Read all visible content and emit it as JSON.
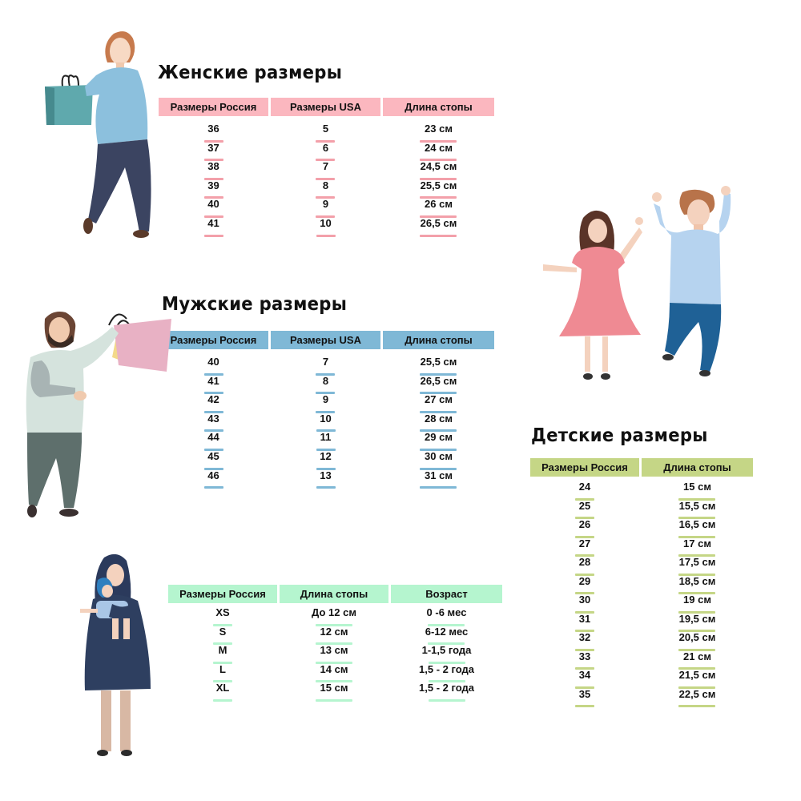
{
  "colors": {
    "women": "#fbb7bf",
    "men": "#7fb8d6",
    "kids": "#c5d686",
    "infant": "#b5f5cf"
  },
  "women": {
    "title": "Женские размеры",
    "headers": [
      "Размеры Россия",
      "Размеры USA",
      "Длина стопы"
    ],
    "rows": [
      [
        "36",
        "5",
        "23 см"
      ],
      [
        "37",
        "6",
        "24 см"
      ],
      [
        "38",
        "7",
        "24,5 см"
      ],
      [
        "39",
        "8",
        "25,5 см"
      ],
      [
        "40",
        "9",
        "26 см"
      ],
      [
        "41",
        "10",
        "26,5 см"
      ]
    ]
  },
  "men": {
    "title": "Мужские размеры",
    "headers": [
      "Размеры Россия",
      "Размеры USA",
      "Длина стопы"
    ],
    "rows": [
      [
        "40",
        "7",
        "25,5 см"
      ],
      [
        "41",
        "8",
        "26,5 см"
      ],
      [
        "42",
        "9",
        "27 см"
      ],
      [
        "43",
        "10",
        "28 см"
      ],
      [
        "44",
        "11",
        "29 см"
      ],
      [
        "45",
        "12",
        "30 см"
      ],
      [
        "46",
        "13",
        "31 см"
      ]
    ]
  },
  "kids": {
    "title": "Детские размеры",
    "headers": [
      "Размеры Россия",
      "Длина стопы"
    ],
    "rows": [
      [
        "24",
        "15 см"
      ],
      [
        "25",
        "15,5 см"
      ],
      [
        "26",
        "16,5 см"
      ],
      [
        "27",
        "17 см"
      ],
      [
        "28",
        "17,5 см"
      ],
      [
        "29",
        "18,5 см"
      ],
      [
        "30",
        "19 см"
      ],
      [
        "31",
        "19,5 см"
      ],
      [
        "32",
        "20,5 см"
      ],
      [
        "33",
        "21 см"
      ],
      [
        "34",
        "21,5 см"
      ],
      [
        "35",
        "22,5 см"
      ]
    ]
  },
  "infant": {
    "headers": [
      "Размеры Россия",
      "Длина стопы",
      "Возраст"
    ],
    "rows": [
      [
        "XS",
        "До 12 см",
        "0 -6 мес"
      ],
      [
        "S",
        "12 см",
        "6-12 мес"
      ],
      [
        "M",
        "13 см",
        "1-1,5 года"
      ],
      [
        "L",
        "14 см",
        "1,5 - 2 года"
      ],
      [
        "XL",
        "15 см",
        "1,5 - 2 года"
      ]
    ]
  }
}
